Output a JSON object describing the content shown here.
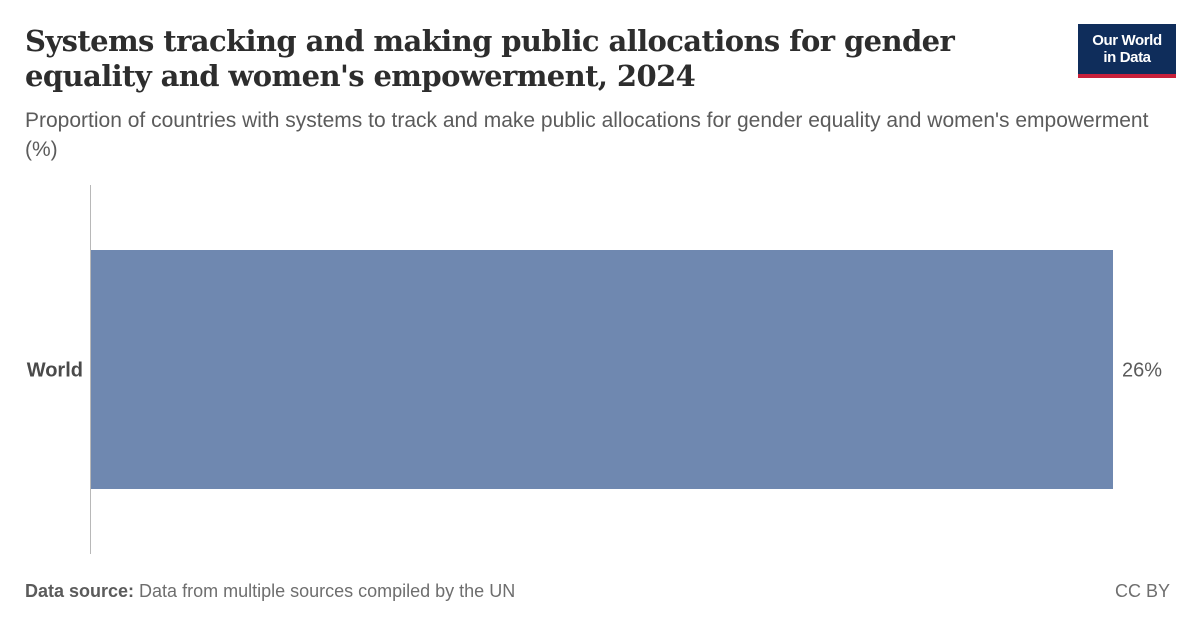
{
  "header": {
    "title_line1": "Systems tracking and making public allocations for gender",
    "title_line2": "equality and women's empowerment, 2024",
    "subtitle": "Proportion of countries with systems to track and make public allocations for gender equality and women's empowerment (%)"
  },
  "logo": {
    "line1": "Our World",
    "line2": "in Data"
  },
  "chart_data": {
    "type": "bar",
    "orientation": "horizontal",
    "categories": [
      "World"
    ],
    "values": [
      26
    ],
    "value_labels": [
      "26%"
    ],
    "title": "Systems tracking and making public allocations for gender equality and women's empowerment, 2024",
    "subtitle": "Proportion of countries with systems to track and make public allocations for gender equality and women's empowerment (%)",
    "xlim": [
      0,
      26
    ],
    "grid": false,
    "legend": "none",
    "colors": [
      "#6f88b0"
    ]
  },
  "footer": {
    "source_label": "Data source:",
    "source_text": " Data from multiple sources compiled by the UN",
    "license": "CC BY"
  },
  "colors": {
    "bar": "#6f88b0",
    "logo_bg": "#0f2d5b",
    "logo_accent": "#c8203a"
  }
}
